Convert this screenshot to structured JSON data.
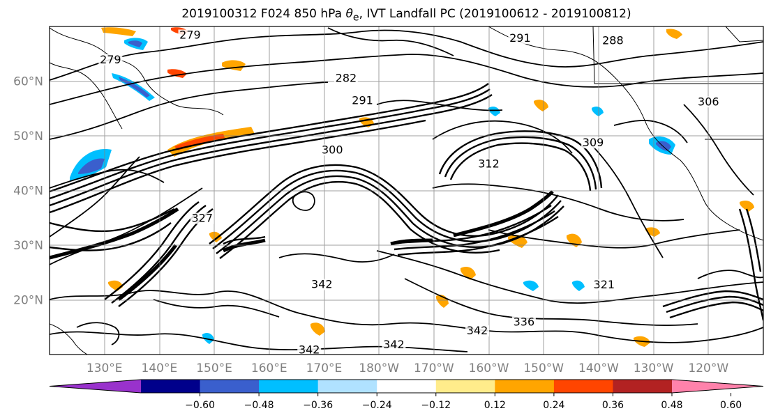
{
  "title": {
    "prefix": "2019100312 F024 850 hPa ",
    "theta": "θ",
    "sub": "e",
    "suffix": ", IVT Landfall PC (2019100612 - 2019100812)"
  },
  "map": {
    "lat_ticks": [
      {
        "value": 60,
        "label": "60°N"
      },
      {
        "value": 50,
        "label": "50°N"
      },
      {
        "value": 40,
        "label": "40°N"
      },
      {
        "value": 30,
        "label": "30°N"
      },
      {
        "value": 20,
        "label": "20°N"
      }
    ],
    "lon_ticks": [
      {
        "value": 130,
        "label": "130°E"
      },
      {
        "value": 140,
        "label": "140°E"
      },
      {
        "value": 150,
        "label": "150°E"
      },
      {
        "value": 160,
        "label": "160°E"
      },
      {
        "value": 170,
        "label": "170°E"
      },
      {
        "value": 180,
        "label": "180°W"
      },
      {
        "value": 190,
        "label": "170°W"
      },
      {
        "value": 200,
        "label": "160°W"
      },
      {
        "value": 210,
        "label": "150°W"
      },
      {
        "value": 220,
        "label": "140°W"
      },
      {
        "value": 230,
        "label": "130°W"
      },
      {
        "value": 240,
        "label": "120°W"
      }
    ],
    "lon_range": [
      120,
      250
    ],
    "lat_range": [
      10,
      70
    ],
    "grid": true,
    "contour_labels": [
      {
        "text": "279",
        "lon": 145.6,
        "lat": 67.9
      },
      {
        "text": "279",
        "lon": 131.1,
        "lat": 63.4
      },
      {
        "text": "282",
        "lon": 174.0,
        "lat": 60.0
      },
      {
        "text": "291",
        "lon": 205.7,
        "lat": 67.3
      },
      {
        "text": "288",
        "lon": 222.6,
        "lat": 66.9
      },
      {
        "text": "291",
        "lon": 177.0,
        "lat": 55.9
      },
      {
        "text": "306",
        "lon": 240.0,
        "lat": 55.7
      },
      {
        "text": "300",
        "lon": 171.5,
        "lat": 46.9
      },
      {
        "text": "309",
        "lon": 219.0,
        "lat": 48.2
      },
      {
        "text": "312",
        "lon": 200.0,
        "lat": 44.3
      },
      {
        "text": "327",
        "lon": 147.8,
        "lat": 34.4
      },
      {
        "text": "342",
        "lon": 169.6,
        "lat": 22.3
      },
      {
        "text": "321",
        "lon": 221.0,
        "lat": 22.2
      },
      {
        "text": "336",
        "lon": 206.4,
        "lat": 15.4
      },
      {
        "text": "342",
        "lon": 197.9,
        "lat": 13.8
      },
      {
        "text": "342",
        "lon": 167.3,
        "lat": 10.3
      },
      {
        "text": "342",
        "lon": 182.7,
        "lat": 11.3
      }
    ]
  },
  "colorbar": {
    "colors": [
      "#9932cc",
      "#00008b",
      "#3a5fcd",
      "#00bfff",
      "#b0e2ff",
      "#ffffff",
      "#ffec8b",
      "#ffa500",
      "#ff4500",
      "#b22222",
      "#ff82ab"
    ],
    "tick_labels": [
      "−0.60",
      "−0.48",
      "−0.36",
      "−0.24",
      "−0.12",
      "0.12",
      "0.24",
      "0.36",
      "0.48",
      "0.60"
    ]
  }
}
